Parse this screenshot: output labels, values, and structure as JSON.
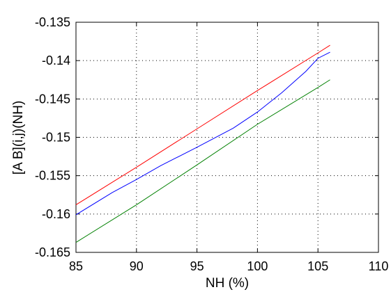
{
  "chart_data": {
    "type": "line",
    "title": "",
    "xlabel": "NH (%)",
    "ylabel": "[A B](i,j)(NH)",
    "xlim": [
      85,
      110
    ],
    "ylim": [
      -0.165,
      -0.135
    ],
    "x_ticks": [
      85,
      90,
      95,
      100,
      105,
      110
    ],
    "y_ticks": [
      -0.165,
      -0.16,
      -0.155,
      -0.15,
      -0.145,
      -0.14,
      -0.135
    ],
    "x_tick_labels": [
      "85",
      "90",
      "95",
      "100",
      "105",
      "110"
    ],
    "y_tick_labels": [
      "-0.165",
      "-0.16",
      "-0.155",
      "-0.15",
      "-0.145",
      "-0.14",
      "-0.135"
    ],
    "grid": true,
    "legend": "none",
    "series": [
      {
        "color": "#ff0000",
        "x": [
          85,
          90,
          95,
          100,
          105,
          106
        ],
        "y": [
          -0.1588,
          -0.1539,
          -0.1489,
          -0.1439,
          -0.139,
          -0.138
        ]
      },
      {
        "color": "#0000ff",
        "x": [
          85,
          88,
          90,
          92,
          95,
          98,
          100,
          102,
          104,
          105,
          106
        ],
        "y": [
          -0.1601,
          -0.1572,
          -0.1555,
          -0.1537,
          -0.1513,
          -0.1488,
          -0.1467,
          -0.1442,
          -0.1414,
          -0.1397,
          -0.1389
        ]
      },
      {
        "color": "#008000",
        "x": [
          85,
          90,
          95,
          100,
          105,
          106
        ],
        "y": [
          -0.1637,
          -0.1588,
          -0.1536,
          -0.1483,
          -0.1435,
          -0.1425
        ]
      }
    ]
  }
}
